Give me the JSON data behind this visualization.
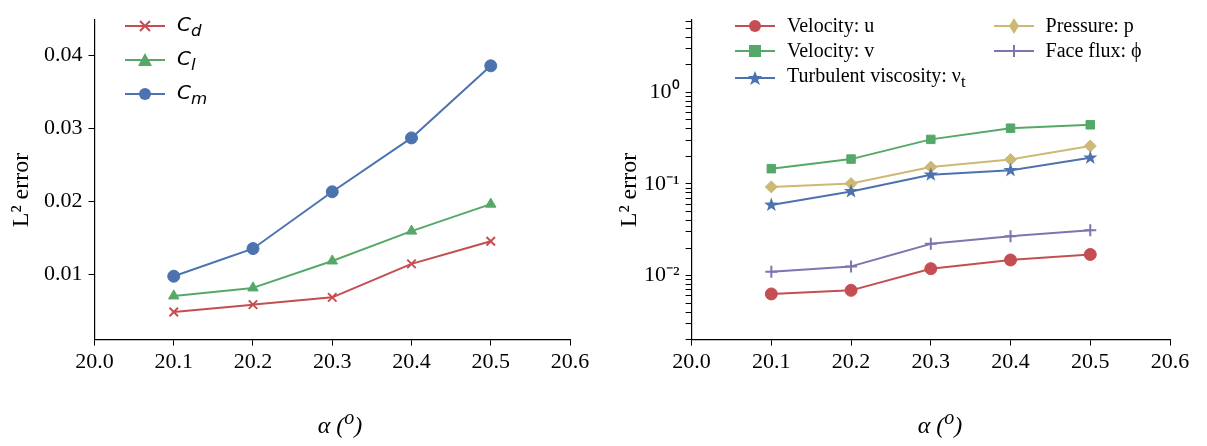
{
  "chart_data": [
    {
      "type": "line",
      "xlabel": "α ($^{o}$)",
      "ylabel": "L² error",
      "x": [
        20.1,
        20.2,
        20.3,
        20.4,
        20.5
      ],
      "xlim": [
        20.0,
        20.6
      ],
      "xticks": [
        {
          "value": 20.0,
          "label": "20.0"
        },
        20.1,
        20.2,
        20.3,
        20.4,
        20.5,
        20.6
      ],
      "ylim": [
        0.001,
        0.045
      ],
      "yticks": [
        0.01,
        0.02,
        0.03,
        0.04
      ],
      "grid": false,
      "legend": "top left",
      "series": [
        {
          "name": "C$_{d}$",
          "color": "#c44e52",
          "marker": "cross",
          "values": [
            0.0048,
            0.0058,
            0.0068,
            0.0114,
            0.0145
          ]
        },
        {
          "name": "C$_{l}$",
          "color": "#55a868",
          "marker": "triangle",
          "values": [
            0.007,
            0.0081,
            0.0118,
            0.0159,
            0.0196
          ]
        },
        {
          "name": "C$_{m}$",
          "color": "#4c72b0",
          "marker": "circle",
          "values": [
            0.0097,
            0.0135,
            0.0213,
            0.0287,
            0.0386
          ]
        }
      ]
    },
    {
      "type": "line",
      "xlabel": "α ($^{o}$)",
      "ylabel": "L² error",
      "log": "y",
      "x": [
        20.1,
        20.2,
        20.3,
        20.4,
        20.5
      ],
      "xlim": [
        20.0,
        20.6
      ],
      "xticks": [
        {
          "value": 20.0,
          "label": "20.0"
        },
        20.1,
        20.2,
        20.3,
        20.4,
        20.5,
        20.6
      ],
      "ylim": [
        0.002,
        6.3
      ],
      "yticks": [
        {
          "value": 0.002,
          "label": null
        },
        {
          "value": 0.003,
          "label": null
        },
        {
          "value": 0.004,
          "label": null
        },
        {
          "value": 0.005,
          "label": null
        },
        {
          "value": 0.006,
          "label": null
        },
        {
          "value": 0.007,
          "label": null
        },
        {
          "value": 0.008,
          "label": null
        },
        {
          "value": 0.009,
          "label": null
        },
        {
          "value": 0.01,
          "label": "10⁻²"
        },
        {
          "value": 0.02,
          "label": null
        },
        {
          "value": 0.03,
          "label": null
        },
        {
          "value": 0.04,
          "label": null
        },
        {
          "value": 0.05,
          "label": null
        },
        {
          "value": 0.06,
          "label": null
        },
        {
          "value": 0.07,
          "label": null
        },
        {
          "value": 0.08,
          "label": null
        },
        {
          "value": 0.09,
          "label": null
        },
        {
          "value": 0.1,
          "label": "10⁻¹"
        },
        {
          "value": 0.2,
          "label": null
        },
        {
          "value": 0.3,
          "label": null
        },
        {
          "value": 0.4,
          "label": null
        },
        {
          "value": 0.5,
          "label": null
        },
        {
          "value": 0.6,
          "label": null
        },
        {
          "value": 0.7,
          "label": null
        },
        {
          "value": 0.8,
          "label": null
        },
        {
          "value": 0.9,
          "label": null
        },
        {
          "value": 1,
          "label": "10⁰"
        },
        {
          "value": 2,
          "label": null
        },
        {
          "value": 3,
          "label": null
        },
        {
          "value": 4,
          "label": null
        },
        {
          "value": 5,
          "label": null
        },
        {
          "value": 6,
          "label": null
        }
      ],
      "grid": false,
      "legend": "top",
      "series": [
        {
          "name": "Velocity: u",
          "color": "#c44e52",
          "marker": "circle",
          "values": [
            0.0063,
            0.0069,
            0.0119,
            0.0148,
            0.017
          ]
        },
        {
          "name": "Velocity: v",
          "color": "#55a868",
          "marker": "square",
          "values": [
            0.147,
            0.187,
            0.307,
            0.407,
            0.443
          ]
        },
        {
          "name": "Turbulent viscosity: ν$_{t}$",
          "color": "#4c72b0",
          "marker": "star",
          "values": [
            0.059,
            0.083,
            0.126,
            0.141,
            0.193
          ]
        },
        {
          "name": "Pressure: p",
          "color": "#ccb974",
          "marker": "diamond",
          "values": [
            0.093,
            0.101,
            0.153,
            0.185,
            0.26
          ]
        },
        {
          "name": "Face flux: ϕ",
          "color": "#8172b2",
          "marker": "plus",
          "values": [
            0.011,
            0.0126,
            0.0222,
            0.0269,
            0.0313
          ]
        }
      ]
    }
  ]
}
